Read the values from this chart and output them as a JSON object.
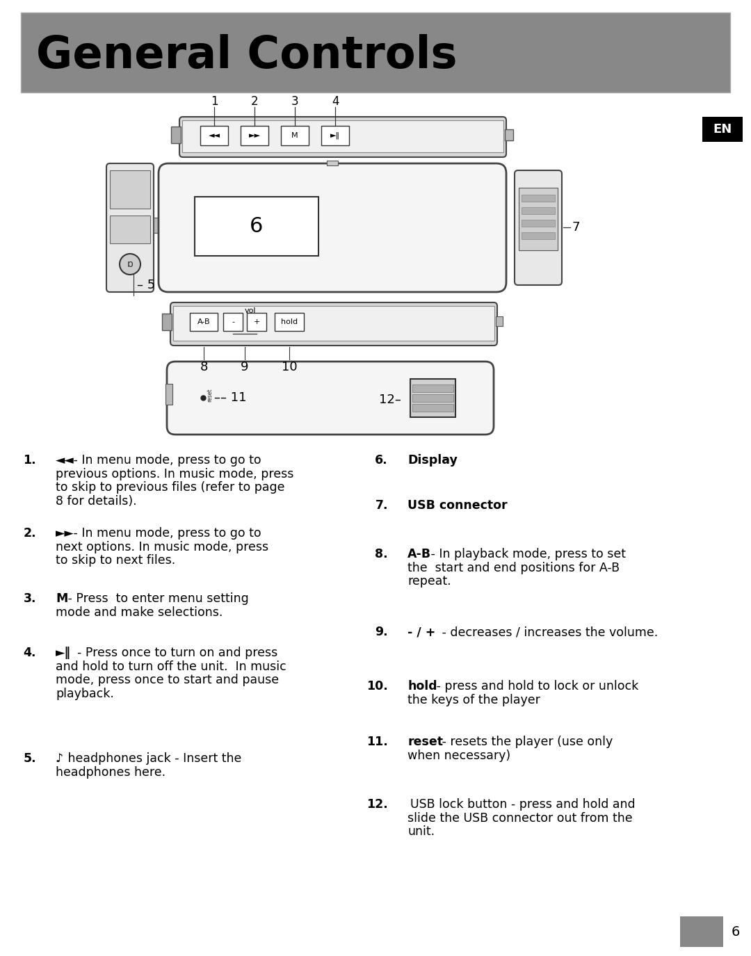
{
  "title": "General Controls",
  "title_bg_color": "#888888",
  "title_text_color": "#000000",
  "bg_color": "#ffffff",
  "en_bg_color": "#000000",
  "en_text_color": "#ffffff",
  "page_number": "6",
  "left_items": [
    {
      "num": "1.",
      "bold": "◄◄",
      "text": " - In menu mode, press to go to\nprevious options. In music mode, press\nto skip to previous files (refer to page\n8 for details)."
    },
    {
      "num": "2.",
      "bold": "►►",
      "text": " - In menu mode, press to go to\nnext options. In music mode, press\nto skip to next files."
    },
    {
      "num": "3.",
      "bold": "M",
      "text": " - Press  to enter menu setting\nmode and make selections."
    },
    {
      "num": "4.",
      "bold": "►‖",
      "text": "  - Press once to turn on and press\nand hold to turn off the unit.  In music\nmode, press once to start and pause\nplayback."
    },
    {
      "num": "5.",
      "bold": "♪",
      "text": " headphones jack - Insert the\nheadphones here."
    }
  ],
  "right_items": [
    {
      "num": "6.",
      "bold": "Display",
      "text": ""
    },
    {
      "num": "7.",
      "bold": "USB connector",
      "text": ""
    },
    {
      "num": "8.",
      "bold": "A-B",
      "text": " - In playback mode, press to set\nthe  start and end positions for A-B\nrepeat."
    },
    {
      "num": "9.",
      "bold": "- / +",
      "text": " - decreases / increases the volume."
    },
    {
      "num": "10.",
      "bold": "hold",
      "text": " - press and hold to lock or unlock\nthe keys of the player"
    },
    {
      "num": "11.",
      "bold": "reset",
      "text": " - resets the player (use only\nwhen necessary)"
    },
    {
      "num": "12.",
      "bold": "",
      "text": "USB lock button - press and hold and\nslide the USB connector out from the\nunit."
    }
  ]
}
